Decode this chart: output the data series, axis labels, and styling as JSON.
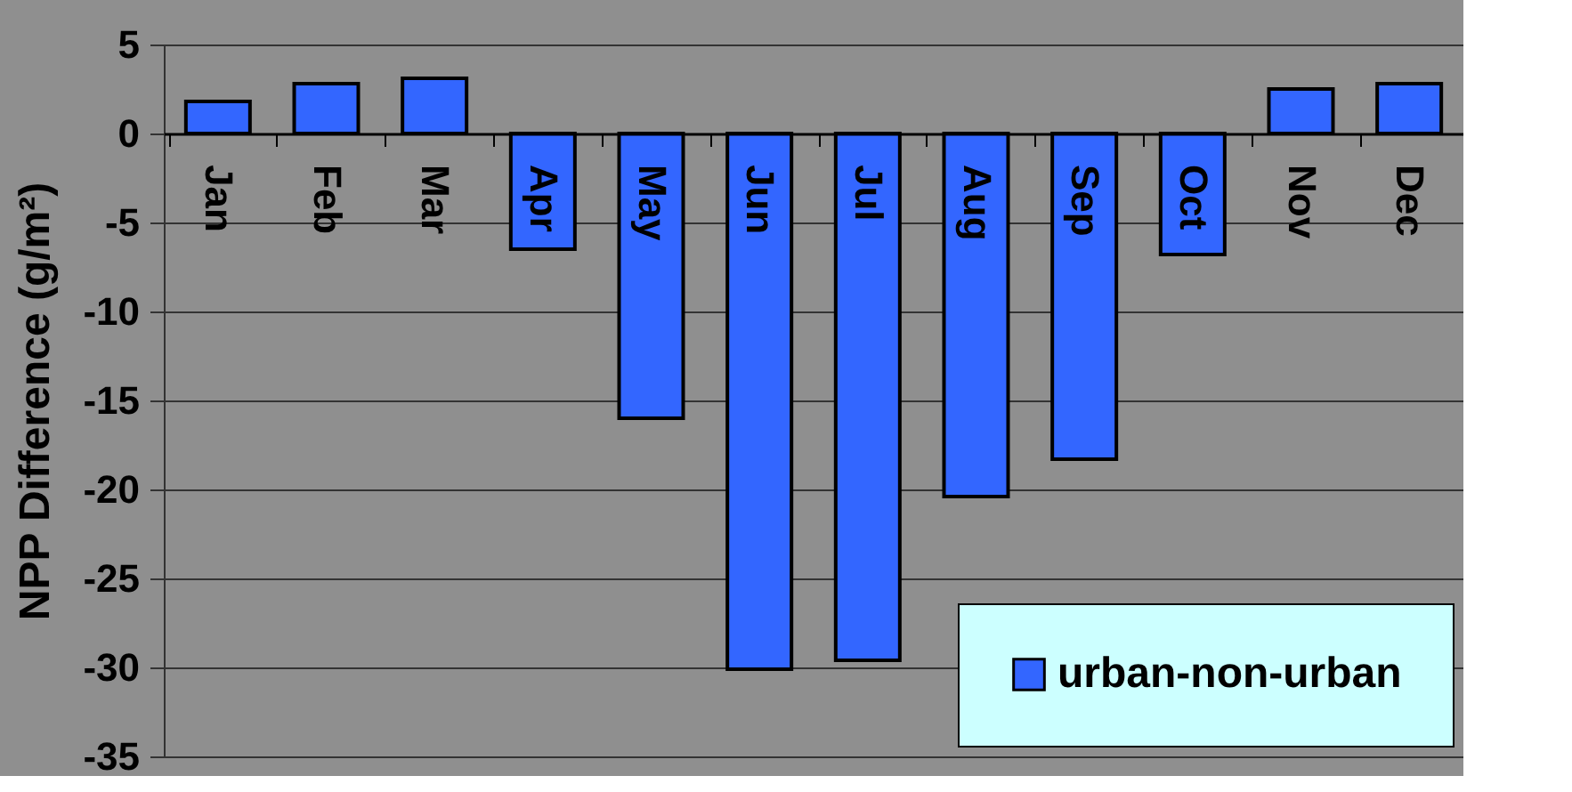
{
  "chart_data": {
    "type": "bar",
    "ylabel": "NPP Difference (g/m²)",
    "categories": [
      "Jan",
      "Feb",
      "Mar",
      "Apr",
      "May",
      "Jun",
      "Jul",
      "Aug",
      "Sep",
      "Oct",
      "Nov",
      "Dec"
    ],
    "series": [
      {
        "name": "urban-non-urban",
        "color": "#3366ff",
        "values": [
          1.8,
          2.8,
          3.1,
          -6.5,
          -16.0,
          -30.1,
          -29.6,
          -20.4,
          -18.3,
          -6.8,
          2.5,
          2.8
        ]
      }
    ],
    "ylim": [
      -35,
      5
    ],
    "yticks": [
      5,
      0,
      -5,
      -10,
      -15,
      -20,
      -25,
      -30,
      -35
    ],
    "grid": "y",
    "legend": "bottom right"
  }
}
